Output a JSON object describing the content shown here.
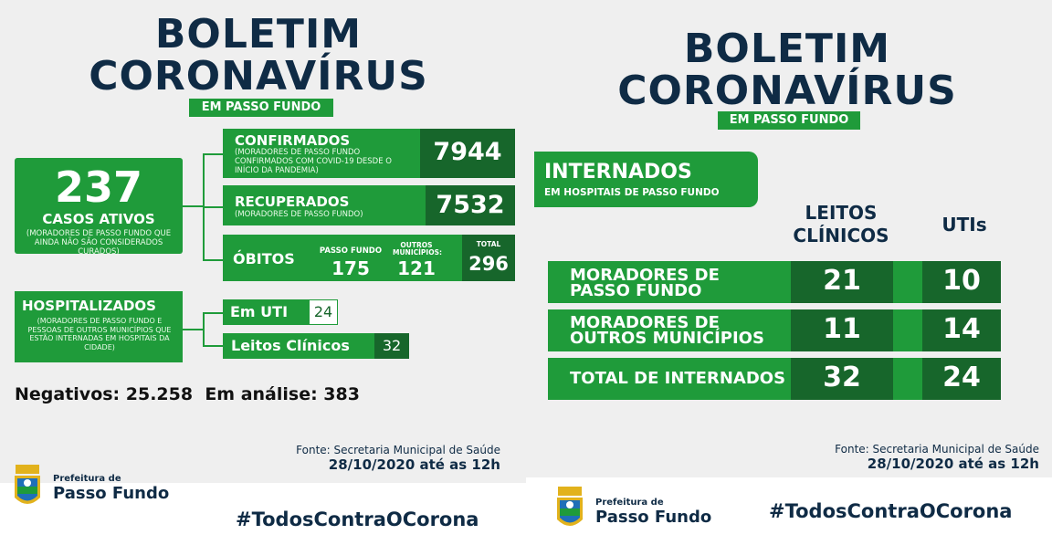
{
  "left": {
    "title1": "BOLETIM",
    "title2": "CORONAVÍRUS",
    "tag": "EM PASSO FUNDO",
    "ativos": {
      "value": "237",
      "label": "CASOS ATIVOS",
      "desc": "(MORADORES DE PASSO FUNDO QUE AINDA NÃO SÃO CONSIDERADOS CURADOS)"
    },
    "confirmados": {
      "label": "CONFIRMADOS",
      "desc": "(MORADORES DE PASSO FUNDO CONFIRMADOS COM COVID-19 DESDE O INÍCIO DA PANDEMIA)",
      "value": "7944"
    },
    "recuperados": {
      "label": "RECUPERADOS",
      "desc": "(MORADORES DE PASSO FUNDO)",
      "value": "7532"
    },
    "obitos": {
      "label": "ÓBITOS",
      "pf_label": "PASSO FUNDO",
      "pf_value": "175",
      "outros_label": "OUTROS MUNICÍPIOS:",
      "outros_value": "121",
      "total_label": "TOTAL",
      "total_value": "296"
    },
    "hospitalizados": {
      "label": "HOSPITALIZADOS",
      "desc": "(MORADORES DE PASSO FUNDO E PESSOAS DE OUTROS MUNICÍPIOS QUE ESTÃO INTERNADAS EM HOSPITAIS DA CIDADE)"
    },
    "uti": {
      "label": "Em UTI",
      "value": "24"
    },
    "leitos": {
      "label": "Leitos Clínicos",
      "value": "32"
    },
    "negativos": "Negativos: 25.258  Em análise: 383",
    "fonte": "Fonte: Secretaria Municipal de Saúde",
    "date": "28/10/2020 até as 12h",
    "logo1": "Prefeitura de",
    "logo2": "Passo Fundo",
    "hashtag": "#TodosContraOCorona"
  },
  "right": {
    "title1": "BOLETIM",
    "title2": "CORONAVÍRUS",
    "tag": "EM PASSO FUNDO",
    "internados": "INTERNADOS",
    "internados_sub": "EM HOSPITAIS DE PASSO FUNDO",
    "col1": "LEITOS CLÍNICOS",
    "col2": "UTIs",
    "rows": [
      {
        "label1": "MORADORES DE",
        "label2": "PASSO FUNDO",
        "leitos": "21",
        "utis": "10"
      },
      {
        "label1": "MORADORES DE",
        "label2": "OUTROS MUNICÍPIOS",
        "leitos": "11",
        "utis": "14"
      },
      {
        "label1": "TOTAL DE INTERNADOS",
        "label2": "",
        "leitos": "32",
        "utis": "24"
      }
    ],
    "fonte": "Fonte: Secretaria Municipal de Saúde",
    "date": "28/10/2020 até as 12h",
    "logo1": "Prefeitura de",
    "logo2": "Passo Fundo",
    "hashtag": "#TodosContraOCorona"
  },
  "colors": {
    "green": "#1f9b3a",
    "dark_green": "#17662b",
    "navy": "#0f2b45",
    "bg": "#efefef"
  }
}
